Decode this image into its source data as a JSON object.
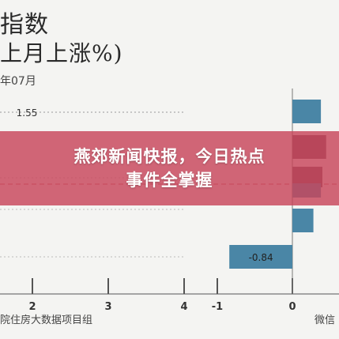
{
  "header": {
    "title_line1": "指数",
    "title_line2": "上月上涨%)",
    "date": "年07月"
  },
  "footer": {
    "source": "院住房大数据项目组",
    "watermark": "微信"
  },
  "banner": {
    "headline_line1": "燕郊新闻快报，今日热点",
    "headline_line2": "事件全掌握"
  },
  "colors": {
    "bar": "#4a86a6",
    "bar_highlight": "#6f4a5a",
    "axis": "#555555",
    "banner": "#c8465a"
  },
  "chart_data": [
    {
      "type": "bar",
      "title": "",
      "orientation": "horizontal",
      "values": [
        1.55
      ],
      "data_labels": [
        "1.55"
      ],
      "x_ticks": [
        "2",
        "3",
        "4"
      ]
    },
    {
      "type": "bar",
      "title": "",
      "orientation": "horizontal",
      "values": [
        0.38,
        0.45,
        0.4,
        0.38,
        0.28,
        -0.84
      ],
      "data_labels": [
        "",
        "",
        "",
        "",
        "",
        "-0.84"
      ],
      "x_ticks": [
        "-1",
        "0"
      ]
    }
  ]
}
